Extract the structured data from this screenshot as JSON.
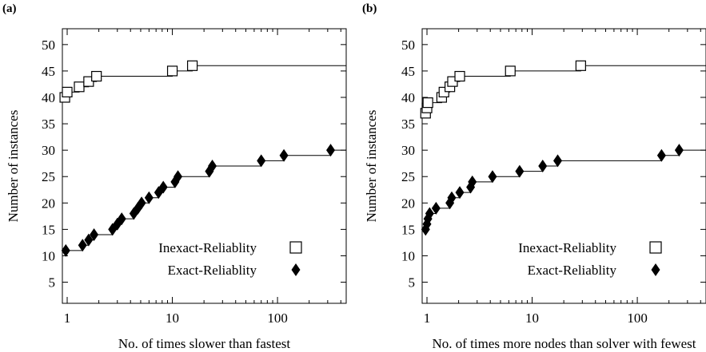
{
  "chart_data": [
    {
      "panel_label": "(a)",
      "type": "step-scatter",
      "xlabel": "No. of times slower than fastest",
      "ylabel": "Number of instances",
      "xscale": "log",
      "xlim": [
        0.9,
        450
      ],
      "ylim": [
        1,
        53
      ],
      "xticks": [
        {
          "v": 1,
          "label": "1"
        },
        {
          "v": 10,
          "label": "10"
        },
        {
          "v": 100,
          "label": "100"
        }
      ],
      "yticks": [
        5,
        10,
        15,
        20,
        25,
        30,
        35,
        40,
        45,
        50
      ],
      "grid": false,
      "legend_position": "bottom-right",
      "series": [
        {
          "name": "Inexact-Reliablity",
          "marker": "open-square",
          "color": "#000000",
          "points": [
            [
              0.95,
              40
            ],
            [
              1.0,
              41
            ],
            [
              1.3,
              42
            ],
            [
              1.6,
              43
            ],
            [
              1.9,
              44
            ],
            [
              10.0,
              45
            ],
            [
              15.5,
              46
            ]
          ]
        },
        {
          "name": "Exact-Reliablity",
          "marker": "filled-diamond",
          "color": "#000000",
          "points": [
            [
              0.97,
              11
            ],
            [
              1.4,
              12
            ],
            [
              1.6,
              13
            ],
            [
              1.8,
              14
            ],
            [
              2.7,
              15
            ],
            [
              3.0,
              16
            ],
            [
              3.3,
              17
            ],
            [
              4.3,
              18
            ],
            [
              4.7,
              19
            ],
            [
              5.1,
              20
            ],
            [
              6.0,
              21
            ],
            [
              7.4,
              22
            ],
            [
              8.2,
              23
            ],
            [
              10.6,
              24
            ],
            [
              11.3,
              25
            ],
            [
              22.5,
              26
            ],
            [
              24.0,
              27
            ],
            [
              70.0,
              28
            ],
            [
              115.0,
              29
            ],
            [
              320.0,
              30
            ]
          ]
        }
      ]
    },
    {
      "panel_label": "(b)",
      "type": "step-scatter",
      "xlabel": "No. of times more nodes than solver with fewest",
      "ylabel": "Number of instances",
      "xscale": "log",
      "xlim": [
        0.9,
        450
      ],
      "ylim": [
        1,
        53
      ],
      "xticks": [
        {
          "v": 1,
          "label": "1"
        },
        {
          "v": 10,
          "label": "10"
        },
        {
          "v": 100,
          "label": "100"
        }
      ],
      "yticks": [
        5,
        10,
        15,
        20,
        25,
        30,
        35,
        40,
        45,
        50
      ],
      "grid": false,
      "legend_position": "bottom-right",
      "series": [
        {
          "name": "Inexact-Reliablity",
          "marker": "open-square",
          "color": "#000000",
          "points": [
            [
              0.97,
              37
            ],
            [
              1.0,
              38
            ],
            [
              1.02,
              39
            ],
            [
              1.38,
              40
            ],
            [
              1.45,
              41
            ],
            [
              1.65,
              42
            ],
            [
              1.75,
              43
            ],
            [
              2.05,
              44
            ],
            [
              6.2,
              45
            ],
            [
              29.0,
              46
            ]
          ]
        },
        {
          "name": "Exact-Reliablity",
          "marker": "filled-diamond",
          "color": "#000000",
          "points": [
            [
              0.97,
              15
            ],
            [
              1.0,
              16
            ],
            [
              1.02,
              17
            ],
            [
              1.06,
              18
            ],
            [
              1.22,
              19
            ],
            [
              1.65,
              20
            ],
            [
              1.72,
              21
            ],
            [
              2.05,
              22
            ],
            [
              2.6,
              23
            ],
            [
              2.7,
              24
            ],
            [
              4.2,
              25
            ],
            [
              7.6,
              26
            ],
            [
              12.6,
              27
            ],
            [
              17.5,
              28
            ],
            [
              170.0,
              29
            ],
            [
              250.0,
              30
            ]
          ]
        }
      ]
    }
  ]
}
